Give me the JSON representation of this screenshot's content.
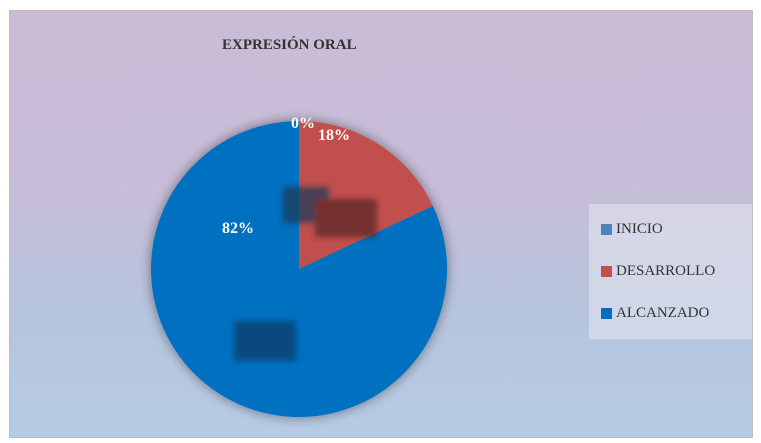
{
  "chart_data": {
    "type": "pie",
    "title": "EXPRESIÓN ORAL",
    "categories": [
      "INICIO",
      "DESARROLLO",
      "ALCANZADO"
    ],
    "values": [
      0,
      18,
      82
    ],
    "data_labels": [
      "0%",
      "18%",
      "82%"
    ],
    "colors": [
      "#4f81bd",
      "#c0504d",
      "#0070c0"
    ],
    "legend_position": "right"
  }
}
